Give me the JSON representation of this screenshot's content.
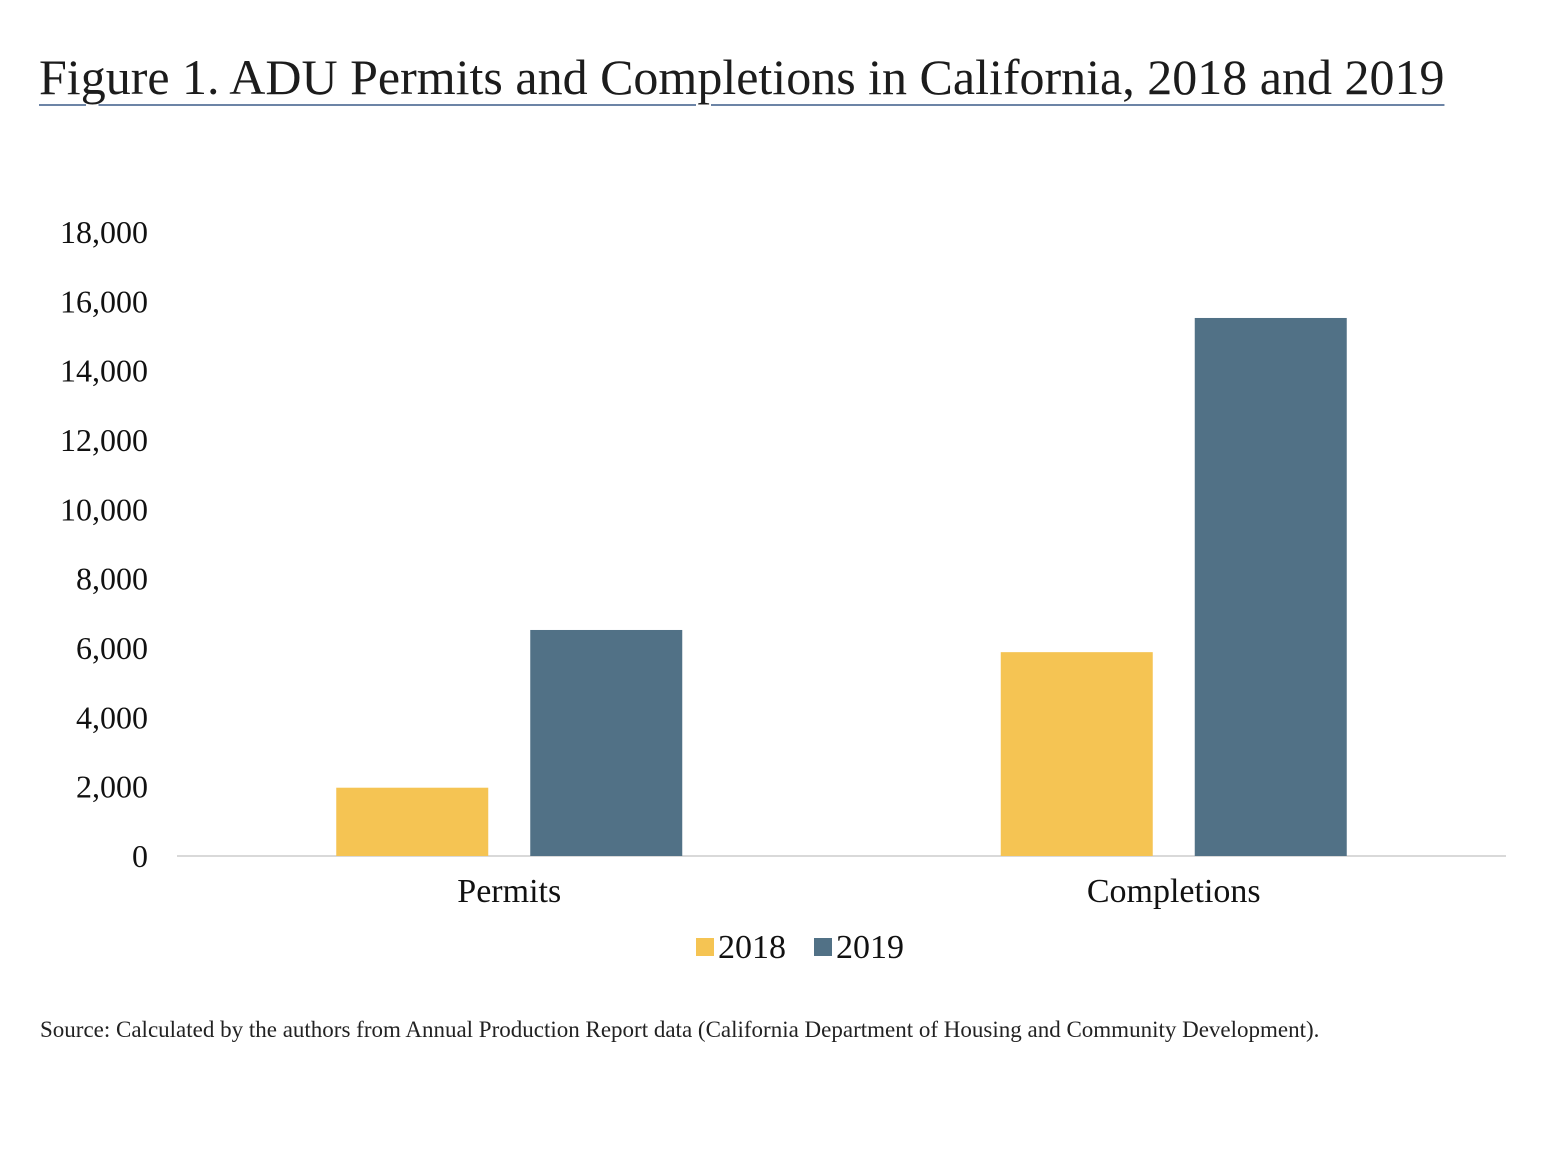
{
  "figure": {
    "title": "Figure 1. ADU Permits and Completions in California, 2018 and 2019",
    "source": "Source: Calculated by the authors from Annual Production Report data (California Department of Housing and Community Development)."
  },
  "chart_data": {
    "type": "bar",
    "title": "Figure 1. ADU Permits and Completions in California, 2018 and 2019",
    "xlabel": "",
    "ylabel": "",
    "categories": [
      "Permits",
      "Completions"
    ],
    "series": [
      {
        "name": "2018",
        "color": "#f5c453",
        "values": [
          1970,
          5880
        ]
      },
      {
        "name": "2019",
        "color": "#517186",
        "values": [
          6520,
          15520
        ]
      }
    ],
    "ylim": [
      0,
      18000
    ],
    "yticks": [
      0,
      2000,
      4000,
      6000,
      8000,
      10000,
      12000,
      14000,
      16000,
      18000
    ],
    "ytick_labels": [
      "0",
      "2,000",
      "4,000",
      "6,000",
      "8,000",
      "10,000",
      "12,000",
      "14,000",
      "16,000",
      "18,000"
    ],
    "grid": false,
    "legend": {
      "placement": "bottom-center",
      "entries": [
        "2018",
        "2019"
      ]
    },
    "axis_color": "#d9d9d9"
  }
}
